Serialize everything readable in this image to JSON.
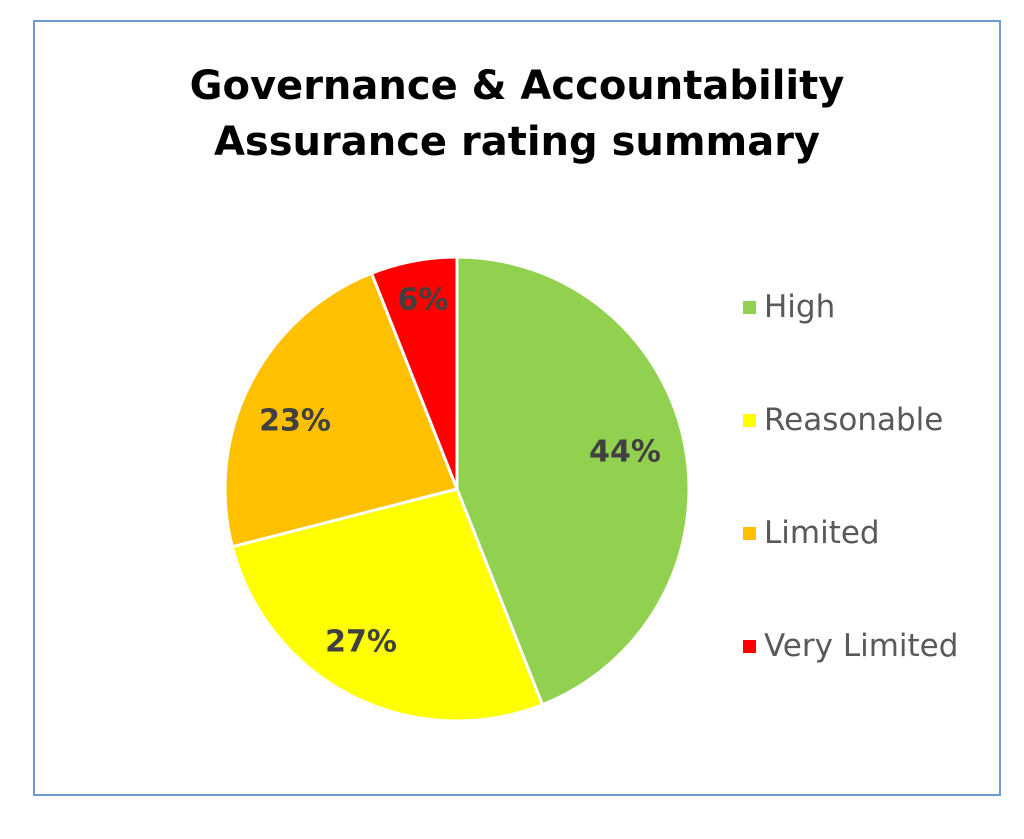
{
  "chart_data": {
    "type": "pie",
    "title": [
      "Governance & Accountability",
      "Assurance rating summary"
    ],
    "categories": [
      "High",
      "Reasonable",
      "Limited",
      "Very Limited"
    ],
    "values": [
      44,
      27,
      23,
      6
    ],
    "data_labels": [
      "44%",
      "27%",
      "23%",
      "6%"
    ],
    "colors": [
      "#92d050",
      "#ffff00",
      "#ffc000",
      "#ff0000"
    ],
    "start_angle": "12 o'clock",
    "direction": "clockwise",
    "legend_position": "right"
  }
}
